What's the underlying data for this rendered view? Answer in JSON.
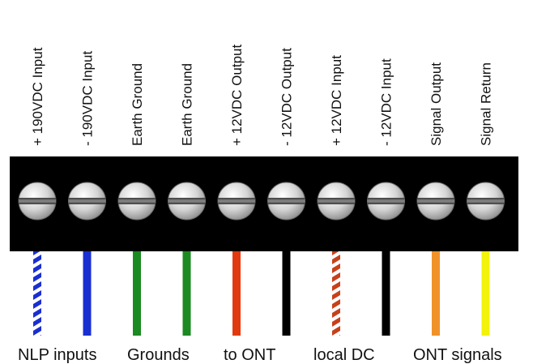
{
  "terminals": [
    {
      "label": "+ 190VDC Input",
      "wire_color": "#1a2fd0",
      "striped": true
    },
    {
      "label": "- 190VDC Input",
      "wire_color": "#1a2fd0",
      "striped": false
    },
    {
      "label": "Earth Ground",
      "wire_color": "#1b8a22",
      "striped": false
    },
    {
      "label": "Earth Ground",
      "wire_color": "#1b8a22",
      "striped": false
    },
    {
      "label": "+ 12VDC Output",
      "wire_color": "#e23a10",
      "striped": false
    },
    {
      "label": "- 12VDC Output",
      "wire_color": "#000000",
      "striped": false
    },
    {
      "label": "+ 12VDC Input",
      "wire_color": "#c8401a",
      "striped": true
    },
    {
      "label": "- 12VDC Input",
      "wire_color": "#000000",
      "striped": false
    },
    {
      "label": "Signal Output",
      "wire_color": "#f0922a",
      "striped": false
    },
    {
      "label": "Signal Return",
      "wire_color": "#f2f20a",
      "striped": false
    }
  ],
  "groups": [
    {
      "label": "NLP inputs"
    },
    {
      "label": "Grounds"
    },
    {
      "label": "to ONT"
    },
    {
      "label": "local DC"
    },
    {
      "label": "ONT signals"
    }
  ],
  "colors": {
    "block": "#000000",
    "screw_face": "#d8d8d8",
    "screw_slot": "#555555",
    "stripe": "#ffffff"
  },
  "icons": [
    "screw-icon"
  ]
}
